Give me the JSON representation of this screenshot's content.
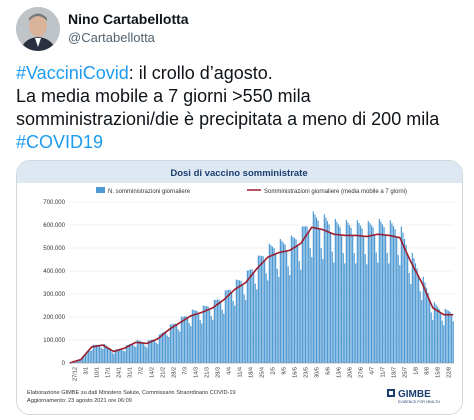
{
  "author": {
    "name": "Nino Cartabellotta",
    "handle": "@Cartabellotta"
  },
  "tweet": {
    "hashtag1": "#VacciniCovid",
    "line1_rest": ": il crollo d’agosto.",
    "line2": "La media mobile a 7 giorni >550 mila",
    "line3": "somministrazioni/die è precipitata a meno di 200 mila",
    "hashtag2": "#COVID19"
  },
  "colors": {
    "hashtag": "#1d9bf0",
    "bar": "#4e9ad3",
    "line": "#9b1d2e",
    "title_band": "#dde8f3"
  },
  "chart_data": {
    "type": "bar",
    "title": "Dosi di vaccino somministrate",
    "legend": [
      "N. somministrazioni giornaliere",
      "Somministrazioni giornaliere (media mobile a 7 giorni)"
    ],
    "legend_position": "top",
    "ylim": [
      0,
      700000
    ],
    "yticks": [
      "0",
      "100.000",
      "200.000",
      "300.000",
      "400.000",
      "500.000",
      "600.000",
      "700.000"
    ],
    "x_tick_labels": [
      "27/12",
      "3/1",
      "10/1",
      "17/1",
      "24/1",
      "31/1",
      "7/2",
      "14/2",
      "21/2",
      "28/2",
      "7/3",
      "14/3",
      "21/3",
      "28/3",
      "4/4",
      "11/4",
      "18/4",
      "25/4",
      "2/5",
      "9/5",
      "16/5",
      "23/5",
      "30/5",
      "6/6",
      "13/6",
      "20/6",
      "27/6",
      "4/7",
      "11/7",
      "18/7",
      "25/7",
      "1/8",
      "8/8",
      "15/8",
      "22/8"
    ],
    "weekly_moving_average": [
      0,
      15000,
      70000,
      78000,
      50000,
      65000,
      90000,
      85000,
      105000,
      145000,
      175000,
      205000,
      220000,
      240000,
      275000,
      320000,
      350000,
      410000,
      460000,
      480000,
      490000,
      520000,
      590000,
      580000,
      560000,
      555000,
      555000,
      550000,
      560000,
      555000,
      545000,
      440000,
      350000,
      240000,
      210000
    ],
    "grid": true,
    "source_note_line1": "Elaborazione GIMBE su dati Ministero Salute, Commissario Straordinario COVID-19",
    "source_note_line2": "Aggiornamento: 23 agosto 2021 ore 06:09",
    "logo_text": "GIMBE",
    "logo_subtext": "EVIDENCE FOR HEALTH"
  }
}
